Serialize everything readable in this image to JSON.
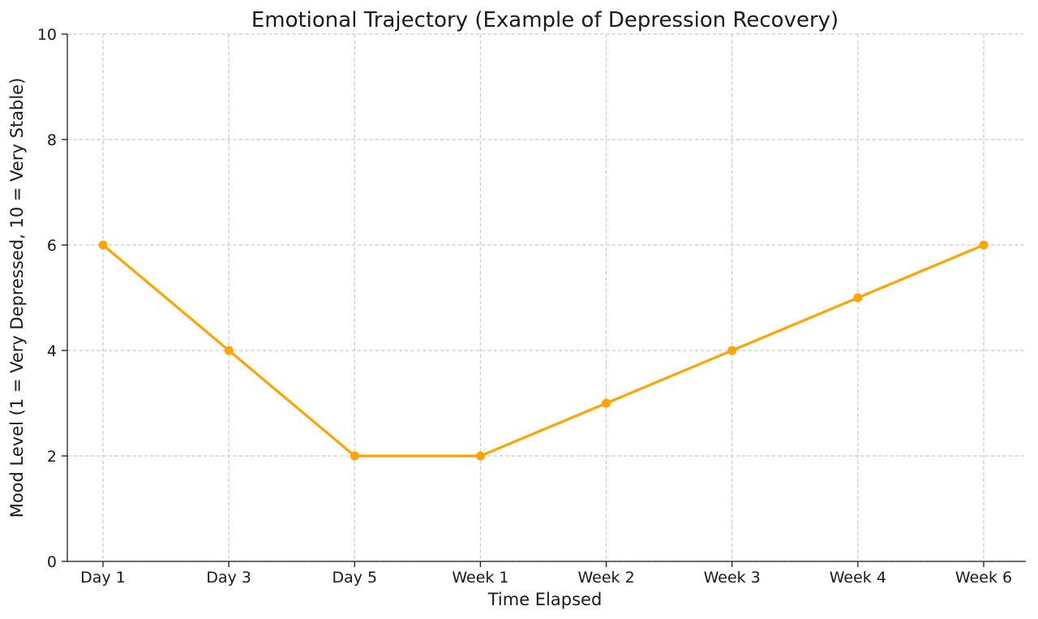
{
  "chart_data": {
    "type": "line",
    "title": "Emotional Trajectory (Example of Depression Recovery)",
    "xlabel": "Time Elapsed",
    "ylabel": "Mood Level (1 = Very Depressed, 10 = Very Stable)",
    "categories": [
      "Day 1",
      "Day 3",
      "Day 5",
      "Week 1",
      "Week 2",
      "Week 3",
      "Week 4",
      "Week 6"
    ],
    "series": [
      {
        "name": "Mood Level",
        "values": [
          6,
          4,
          2,
          2,
          3,
          4,
          5,
          6
        ]
      }
    ],
    "ylim": [
      0,
      10
    ],
    "yticks": [
      0,
      2,
      4,
      6,
      8,
      10
    ],
    "grid": true,
    "grid_style": "dashed",
    "legend_position": "none",
    "colors": {
      "line": "#FFA500",
      "marker": "#FFA500",
      "grid": "#c9c9c9",
      "axis": "#1a1a1a",
      "text": "#1a1a1a",
      "background": "#ffffff"
    }
  }
}
